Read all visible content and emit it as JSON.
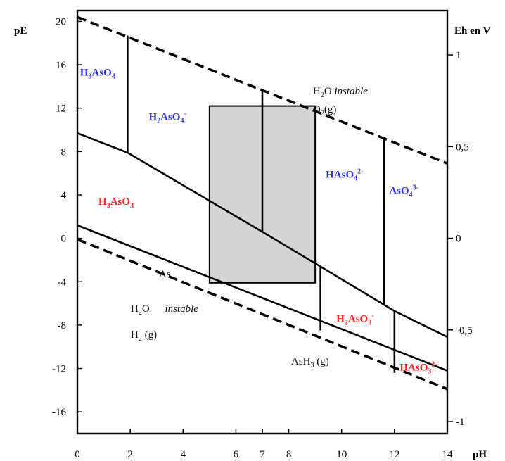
{
  "chart_data": {
    "type": "line",
    "title": "",
    "xlabel": "pH",
    "ylabel": "pE",
    "y2label": "Eh en V",
    "xlim": [
      0,
      14
    ],
    "ylim": [
      -18,
      21
    ],
    "y2lim": [
      -1.065,
      1.242
    ],
    "x_ticks": [
      {
        "v": 0,
        "label": "0"
      },
      {
        "v": 2,
        "label": "2"
      },
      {
        "v": 4,
        "label": "4"
      },
      {
        "v": 6,
        "label": "6"
      },
      {
        "v": 7,
        "label": "7"
      },
      {
        "v": 8,
        "label": "8"
      },
      {
        "v": 10,
        "label": "10"
      },
      {
        "v": 12,
        "label": "12"
      },
      {
        "v": 14,
        "label": "14"
      }
    ],
    "y_ticks": [
      {
        "v": 20,
        "label": "20"
      },
      {
        "v": 16,
        "label": "16"
      },
      {
        "v": 12,
        "label": "12"
      },
      {
        "v": 8,
        "label": "8"
      },
      {
        "v": 4,
        "label": "4"
      },
      {
        "v": 0,
        "label": "0"
      },
      {
        "v": -4,
        "label": "-4"
      },
      {
        "v": -8,
        "label": "-8"
      },
      {
        "v": -12,
        "label": "-12"
      },
      {
        "v": -16,
        "label": "-16"
      }
    ],
    "y2_ticks": [
      {
        "v": 1,
        "label": "1"
      },
      {
        "v": 0.5,
        "label": "0,5"
      },
      {
        "v": 0,
        "label": "0"
      },
      {
        "v": -0.5,
        "label": "-0,5"
      },
      {
        "v": -1,
        "label": "-1"
      }
    ],
    "water_limits": [
      {
        "name": "O2/H2O",
        "x": [
          0,
          14
        ],
        "y": [
          20.4,
          6.9
        ]
      },
      {
        "name": "H2O/H2",
        "x": [
          0,
          14
        ],
        "y": [
          -0.1,
          -13.9
        ]
      }
    ],
    "lines": [
      {
        "name": "As(V)/As(III)",
        "x": [
          0,
          1.9,
          7.0,
          9.2,
          12.0,
          14.0
        ],
        "y": [
          9.7,
          7.9,
          0.6,
          -2.6,
          -6.7,
          -9.1
        ]
      },
      {
        "name": "As(III)/AsH3",
        "x": [
          0,
          14
        ],
        "y": [
          1.2,
          -12.2
        ]
      },
      {
        "name": "H3AsO4/H2AsO4-",
        "x": [
          1.9,
          1.9
        ],
        "y": [
          18.7,
          7.9
        ]
      },
      {
        "name": "H2AsO4-/HAsO4 2-",
        "x": [
          7.0,
          7.0
        ],
        "y": [
          13.7,
          0.6
        ]
      },
      {
        "name": "HAsO4 2-/AsO4 3-",
        "x": [
          11.6,
          11.6
        ],
        "y": [
          9.1,
          -6.1
        ]
      },
      {
        "name": "H3AsO3/H2AsO3-",
        "x": [
          9.2,
          9.2
        ],
        "y": [
          -2.6,
          -8.5
        ]
      },
      {
        "name": "H2AsO3-/HAsO3 2-",
        "x": [
          12.0,
          12.0
        ],
        "y": [
          -6.7,
          -12.4
        ]
      }
    ],
    "shaded_region": {
      "x": [
        5.0,
        9.0
      ],
      "y": [
        -4.1,
        12.2
      ]
    },
    "annotations": {
      "h3aso4": {
        "base": "H",
        "sub1": "3",
        "mid": "AsO",
        "sub2": "4",
        "charge": "",
        "color": "#3333ff",
        "x": 0.1,
        "y": 15.0
      },
      "h2aso4": {
        "base": "H",
        "sub1": "2",
        "mid": "AsO",
        "sub2": "4",
        "charge": "-",
        "color": "#3333ff",
        "x": 2.7,
        "y": 10.9
      },
      "haso4": {
        "base": "HAsO",
        "sub1": "4",
        "mid": "",
        "sub2": "",
        "charge": "2-",
        "color": "#3333ff",
        "x": 9.4,
        "y": 5.6
      },
      "aso4": {
        "base": "AsO",
        "sub1": "4",
        "mid": "",
        "sub2": "",
        "charge": "3-",
        "color": "#3333ff",
        "x": 11.8,
        "y": 4.1
      },
      "h3aso3": {
        "base": "H",
        "sub1": "3",
        "mid": "AsO",
        "sub2": "3",
        "charge": "",
        "color": "#ff2222",
        "x": 0.8,
        "y": 3.1
      },
      "h2aso3": {
        "base": "H",
        "sub1": "2",
        "mid": "AsO",
        "sub2": "3",
        "charge": "-",
        "color": "#ff2222",
        "x": 9.8,
        "y": -7.7
      },
      "haso3": {
        "base": "HAsO",
        "sub1": "3",
        "mid": "",
        "sub2": "",
        "charge": "2-",
        "color": "#ff2222",
        "x": 12.2,
        "y": -12.2
      }
    },
    "notes": {
      "h2o_top": "H₂O instable",
      "o2": "O₂(g)",
      "h2o_bottom": "H₂O instable",
      "h2": "H₂ (g)",
      "as": "As",
      "ash3": "AsH₃ (g)"
    }
  }
}
